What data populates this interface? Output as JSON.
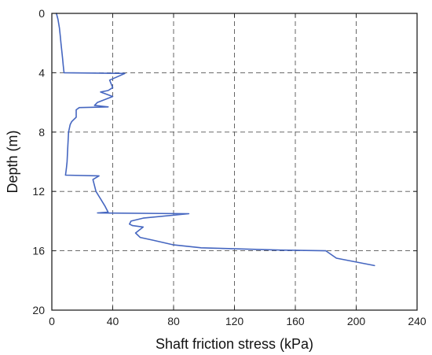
{
  "chart_data": {
    "type": "line",
    "title": "",
    "xlabel": "Shaft friction stress (kPa)",
    "ylabel": "Depth (m)",
    "xlim": [
      0,
      240
    ],
    "ylim": [
      0,
      20
    ],
    "y_inverted": true,
    "grid": true,
    "x_ticks": [
      0,
      40,
      80,
      120,
      160,
      200,
      240
    ],
    "y_ticks": [
      0,
      4,
      8,
      12,
      16,
      20
    ],
    "series": [
      {
        "color": "#4566c0",
        "points": [
          [
            3,
            0
          ],
          [
            4,
            0.4
          ],
          [
            5,
            1.0
          ],
          [
            5.5,
            1.5
          ],
          [
            6,
            2.0
          ],
          [
            6.5,
            2.5
          ],
          [
            7,
            3.0
          ],
          [
            7.5,
            3.5
          ],
          [
            8,
            4.0
          ],
          [
            48,
            4.05
          ],
          [
            38,
            4.5
          ],
          [
            40,
            5.0
          ],
          [
            37,
            5.2
          ],
          [
            32,
            5.3
          ],
          [
            40,
            5.6
          ],
          [
            30,
            6.0
          ],
          [
            28,
            6.2
          ],
          [
            37,
            6.3
          ],
          [
            18,
            6.35
          ],
          [
            16,
            6.5
          ],
          [
            16,
            7.0
          ],
          [
            13,
            7.3
          ],
          [
            12,
            7.5
          ],
          [
            11,
            8.0
          ],
          [
            10.5,
            9.0
          ],
          [
            10,
            10.0
          ],
          [
            9.5,
            10.5
          ],
          [
            9,
            10.9
          ],
          [
            31,
            10.95
          ],
          [
            27,
            11.2
          ],
          [
            29,
            12.0
          ],
          [
            32,
            12.5
          ],
          [
            35,
            13.0
          ],
          [
            37,
            13.4
          ],
          [
            30,
            13.45
          ],
          [
            90,
            13.5
          ],
          [
            60,
            13.8
          ],
          [
            52,
            14.0
          ],
          [
            51,
            14.2
          ],
          [
            53,
            14.3
          ],
          [
            60,
            14.4
          ],
          [
            55,
            14.8
          ],
          [
            58,
            15.1
          ],
          [
            67,
            15.3
          ],
          [
            80,
            15.6
          ],
          [
            98,
            15.8
          ],
          [
            150,
            15.95
          ],
          [
            180,
            16.0
          ],
          [
            187,
            16.5
          ],
          [
            212,
            17.0
          ]
        ]
      }
    ]
  }
}
